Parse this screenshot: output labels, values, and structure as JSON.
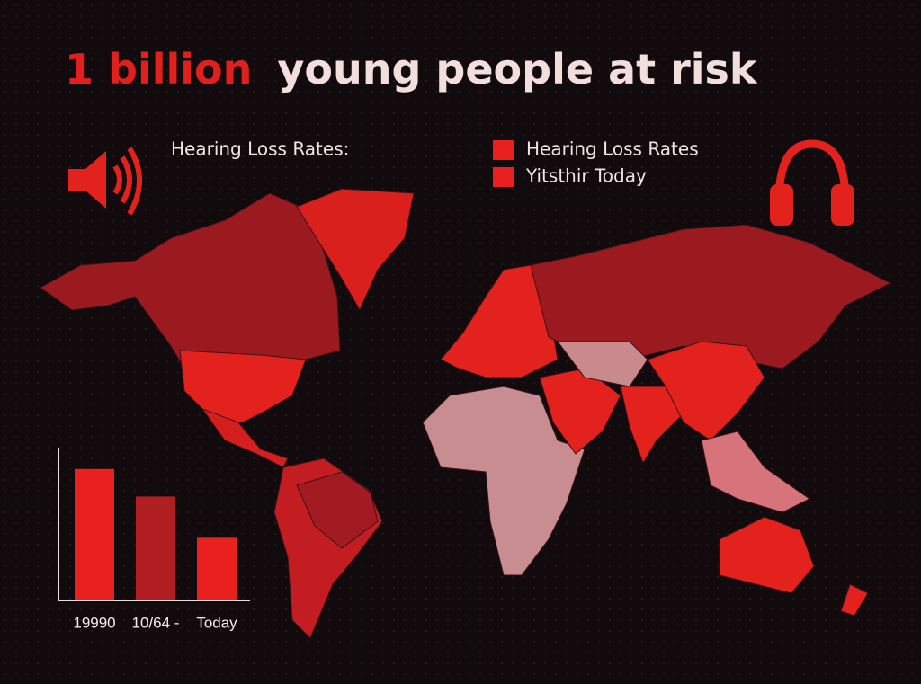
{
  "header": {
    "title_highlight": "1 billion",
    "title_rest": "young people at risk"
  },
  "legend_heading": "Hearing Loss Rates:",
  "legend": [
    {
      "label": "Hearing Loss Rates",
      "color": "#e8201e"
    },
    {
      "label": "Yitsthir Today",
      "color": "#e8201e"
    }
  ],
  "chart_data": {
    "type": "bar",
    "categories": [
      "19990",
      "10/64 -",
      "Today"
    ],
    "values": [
      86,
      68,
      41
    ],
    "colors": [
      "#e8201e",
      "#b01e22",
      "#e8201e"
    ],
    "ylim": [
      0,
      100
    ]
  }
}
